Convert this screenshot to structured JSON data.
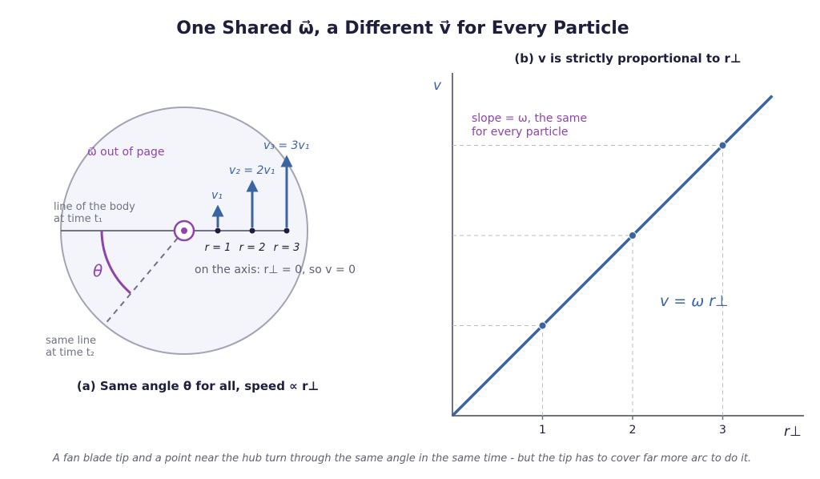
{
  "title": "One Shared ω⃗, a Different v⃗ for Every Particle",
  "caption": "A fan blade tip and a point near the hub turn through the same angle in the same time - but the tip has to cover far more arc to do it.",
  "panel_a": {
    "title": "(a) Same angle θ for all, speed ∝ r⊥",
    "omega_label": "ω⃗ out of page",
    "line_t1": [
      "line of the body",
      "at time t₁"
    ],
    "line_t2": [
      "same line",
      "at time t₂"
    ],
    "theta": "θ",
    "axis_note": "on the axis: r⊥ = 0, so v = 0",
    "particles": [
      {
        "r_label": "r = 1",
        "v_label": "v₁",
        "r": 1
      },
      {
        "r_label": "r = 2",
        "v_label": "v₂ = 2v₁",
        "r": 2
      },
      {
        "r_label": "r = 3",
        "v_label": "v₃ = 3v₁",
        "r": 3
      }
    ]
  },
  "panel_b": {
    "title": "(b) v is strictly proportional to r⊥",
    "slope_note": [
      "slope = ω, the same",
      "for every particle"
    ],
    "equation": "v = ω r⊥"
  },
  "chart_data": {
    "type": "line",
    "title": "(b) v is strictly proportional to r⊥",
    "xlabel": "r⊥",
    "ylabel": "v",
    "x_ticks": [
      1,
      2,
      3
    ],
    "xlim": [
      0,
      3.9
    ],
    "ylim": [
      0,
      3.9
    ],
    "series": [
      {
        "x": [
          0,
          3.55
        ],
        "y": [
          0,
          3.55
        ]
      }
    ],
    "points": [
      {
        "x": 1,
        "y": 1
      },
      {
        "x": 2,
        "y": 2
      },
      {
        "x": 3,
        "y": 3
      }
    ],
    "colors": {
      "line": "#3b64a3",
      "annotation": "#8e44ad"
    }
  }
}
